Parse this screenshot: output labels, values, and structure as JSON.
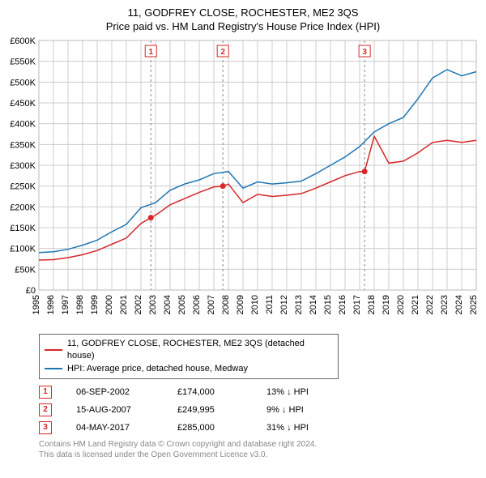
{
  "title_line1": "11, GODFREY CLOSE, ROCHESTER, ME2 3QS",
  "title_line2": "Price paid vs. HM Land Registry's House Price Index (HPI)",
  "chart": {
    "type": "line",
    "background_color": "#ffffff",
    "plot_border_color": "#bbbbbb",
    "grid_color": "#cccccc",
    "x_start_year": 1995,
    "x_end_year": 2025,
    "x_ticks": [
      1995,
      1996,
      1997,
      1998,
      1999,
      2000,
      2001,
      2002,
      2003,
      2004,
      2005,
      2006,
      2007,
      2008,
      2009,
      2010,
      2011,
      2012,
      2013,
      2014,
      2015,
      2016,
      2017,
      2018,
      2019,
      2020,
      2021,
      2022,
      2023,
      2024,
      2025
    ],
    "y_min": 0,
    "y_max": 600000,
    "y_tick_step": 50000,
    "y_tick_labels": [
      "£0",
      "£50K",
      "£100K",
      "£150K",
      "£200K",
      "£250K",
      "£300K",
      "£350K",
      "£400K",
      "£450K",
      "£500K",
      "£550K",
      "£600K"
    ],
    "axis_tick_color": "#000000",
    "axis_label_fontsize": 11,
    "series": [
      {
        "name": "price_paid",
        "label": "11, GODFREY CLOSE, ROCHESTER, ME2 3QS (detached house)",
        "color": "#d62728",
        "line_width": 1.5,
        "x": [
          1995,
          1996,
          1997,
          1998,
          1999,
          2000,
          2001,
          2002,
          2002.68,
          2003,
          2004,
          2005,
          2006,
          2007,
          2007.62,
          2008,
          2009,
          2010,
          2011,
          2012,
          2013,
          2014,
          2015,
          2016,
          2017,
          2017.34,
          2018,
          2019,
          2020,
          2021,
          2022,
          2023,
          2024,
          2025
        ],
        "y": [
          72000,
          73000,
          78000,
          85000,
          95000,
          110000,
          125000,
          160000,
          174000,
          180000,
          205000,
          220000,
          235000,
          248000,
          249995,
          255000,
          210000,
          230000,
          225000,
          228000,
          232000,
          245000,
          260000,
          275000,
          285000,
          285000,
          370000,
          305000,
          310000,
          330000,
          355000,
          360000,
          355000,
          360000
        ]
      },
      {
        "name": "hpi",
        "label": "HPI: Average price, detached house, Medway",
        "color": "#1f77b4",
        "line_width": 1.5,
        "x": [
          1995,
          1996,
          1997,
          1998,
          1999,
          2000,
          2001,
          2002,
          2003,
          2004,
          2005,
          2006,
          2007,
          2008,
          2009,
          2010,
          2011,
          2012,
          2013,
          2014,
          2015,
          2016,
          2017,
          2018,
          2019,
          2020,
          2021,
          2022,
          2023,
          2024,
          2025
        ],
        "y": [
          90000,
          92000,
          98000,
          108000,
          120000,
          140000,
          158000,
          198000,
          210000,
          240000,
          255000,
          265000,
          280000,
          285000,
          245000,
          260000,
          255000,
          258000,
          262000,
          280000,
          300000,
          320000,
          345000,
          380000,
          400000,
          415000,
          460000,
          510000,
          530000,
          515000,
          525000
        ]
      }
    ],
    "markers": [
      {
        "num": "1",
        "x": 2002.68,
        "y": 174000,
        "date": "06-SEP-2002",
        "price": "£174,000",
        "delta": "13% ↓ HPI"
      },
      {
        "num": "2",
        "x": 2007.62,
        "y": 249995,
        "date": "15-AUG-2007",
        "price": "£249,995",
        "delta": "9% ↓ HPI"
      },
      {
        "num": "3",
        "x": 2017.34,
        "y": 285000,
        "date": "04-MAY-2017",
        "price": "£285,000",
        "delta": "31% ↓ HPI"
      }
    ],
    "marker_box_border": "#d62728",
    "marker_text_color": "#d62728",
    "marker_point_color": "#d62728",
    "marker_vline_color": "#888888"
  },
  "legend": {
    "border_color": "#666666",
    "fontsize": 11,
    "items": [
      {
        "color": "#d62728",
        "label": "11, GODFREY CLOSE, ROCHESTER, ME2 3QS (detached house)"
      },
      {
        "color": "#1f77b4",
        "label": "HPI: Average price, detached house, Medway"
      }
    ]
  },
  "footer_line1": "Contains HM Land Registry data © Crown copyright and database right 2024.",
  "footer_line2": "This data is licensed under the Open Government Licence v3.0."
}
